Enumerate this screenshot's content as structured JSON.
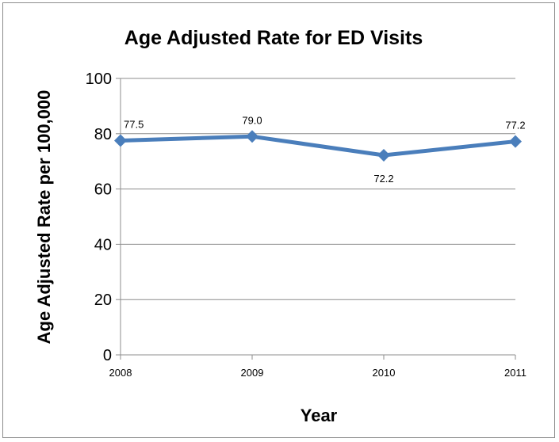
{
  "chart_data": {
    "type": "line",
    "title": "Age Adjusted Rate for ED Visits",
    "xlabel": "Year",
    "ylabel": "Age Adjusted Rate per 100,000",
    "categories": [
      "2008",
      "2009",
      "2010",
      "2011"
    ],
    "series": [
      {
        "values": [
          77.5,
          79.0,
          72.2,
          77.2
        ],
        "labels": [
          "77.5",
          "79.0",
          "72.2",
          "77.2"
        ],
        "color": "#4a7ebb"
      }
    ],
    "ylim": [
      0,
      100
    ],
    "yticks": [
      0,
      20,
      40,
      60,
      80,
      100
    ],
    "grid": true,
    "marker": "diamond",
    "legend": "none"
  }
}
